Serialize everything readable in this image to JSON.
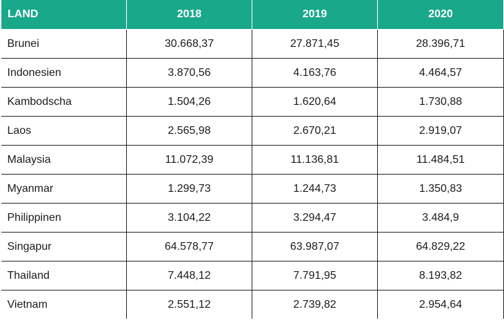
{
  "table": {
    "headers": [
      "LAND",
      "2018",
      "2019",
      "2020"
    ],
    "rows": [
      {
        "country": "Brunei",
        "v2018": "30.668,37",
        "v2019": "27.871,45",
        "v2020": "28.396,71"
      },
      {
        "country": "Indonesien",
        "v2018": "3.870,56",
        "v2019": "4.163,76",
        "v2020": "4.464,57"
      },
      {
        "country": "Kambodscha",
        "v2018": "1.504,26",
        "v2019": "1.620,64",
        "v2020": "1.730,88"
      },
      {
        "country": "Laos",
        "v2018": "2.565,98",
        "v2019": "2.670,21",
        "v2020": "2.919,07"
      },
      {
        "country": "Malaysia",
        "v2018": "11.072,39",
        "v2019": "11.136,81",
        "v2020": "11.484,51"
      },
      {
        "country": "Myanmar",
        "v2018": "1.299,73",
        "v2019": "1.244,73",
        "v2020": "1.350,83"
      },
      {
        "country": "Philippinen",
        "v2018": "3.104,22",
        "v2019": "3.294,47",
        "v2020": "3.484,9"
      },
      {
        "country": "Singapur",
        "v2018": "64.578,77",
        "v2019": "63.987,07",
        "v2020": "64.829,22"
      },
      {
        "country": "Thailand",
        "v2018": "7.448,12",
        "v2019": "7.791,95",
        "v2020": "8.193,82"
      },
      {
        "country": "Vietnam",
        "v2018": "2.551,12",
        "v2019": "2.739,82",
        "v2020": "2.954,64"
      }
    ]
  },
  "colors": {
    "header_bg": "#1aa88a",
    "header_text": "#ffffff",
    "border": "#222222"
  }
}
